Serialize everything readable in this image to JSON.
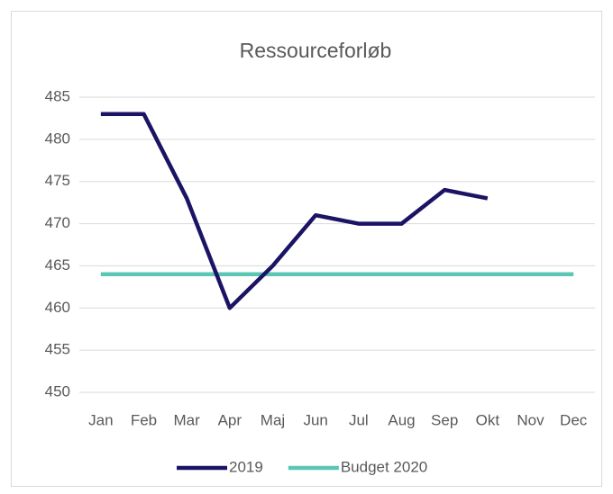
{
  "chart_data": {
    "type": "line",
    "title": "Ressourceforløb",
    "categories": [
      "Jan",
      "Feb",
      "Mar",
      "Apr",
      "Maj",
      "Jun",
      "Jul",
      "Aug",
      "Sep",
      "Okt",
      "Nov",
      "Dec"
    ],
    "series": [
      {
        "name": "2019",
        "color": "#1b1464",
        "values": [
          483,
          483,
          473,
          460,
          465,
          471,
          470,
          470,
          474,
          473,
          null,
          null
        ]
      },
      {
        "name": "Budget 2020",
        "color": "#5cc6b6",
        "values": [
          464,
          464,
          464,
          464,
          464,
          464,
          464,
          464,
          464,
          464,
          464,
          464
        ]
      }
    ],
    "ylim": [
      450,
      485
    ],
    "yticks": [
      450,
      455,
      460,
      465,
      470,
      475,
      480,
      485
    ],
    "grid": true,
    "legend": "bottom"
  }
}
